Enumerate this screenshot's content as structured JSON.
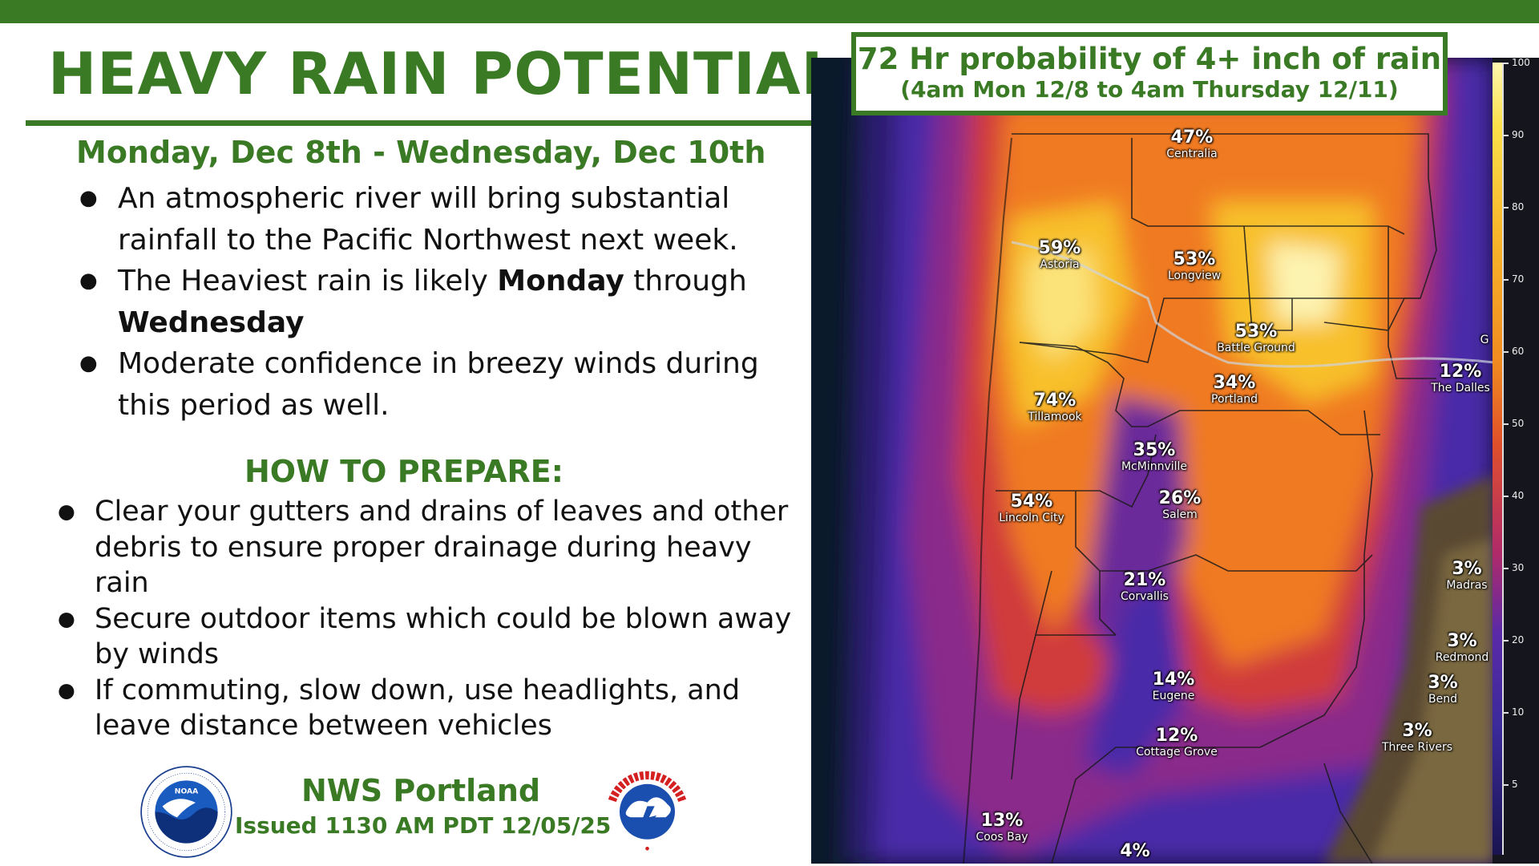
{
  "header": {
    "title": "HEAVY RAIN POTENTIAL",
    "date_range": "Monday, Dec 8th - Wednesday, Dec 10th"
  },
  "bullets": [
    {
      "text": "An atmospheric river will bring substantial rainfall to the Pacific Northwest next week."
    },
    {
      "pre": "The Heaviest rain is likely ",
      "bold1": "Monday",
      "mid": " through ",
      "bold2": "Wednesday"
    },
    {
      "text": "Moderate confidence in breezy winds during this period as well."
    }
  ],
  "prepare": {
    "heading": "HOW TO PREPARE:",
    "items": [
      "Clear your gutters and drains of leaves and other debris to ensure proper drainage during heavy rain",
      "Secure outdoor items which could be blown away by winds",
      "If commuting, slow down, use headlights, and leave distance between vehicles"
    ]
  },
  "footer": {
    "office": "NWS Portland",
    "issued": "Issued 1130 AM PDT 12/05/25"
  },
  "map": {
    "title_line1": "72 Hr probability of 4+ inch of rain",
    "title_line2": "(4am Mon 12/8 to 4am Thursday 12/11)",
    "colorbar_ticks": [
      "100",
      "90",
      "80",
      "70",
      "60",
      "50",
      "40",
      "30",
      "20",
      "10",
      "5"
    ],
    "cities": [
      {
        "pct": "47%",
        "name": "Centralia"
      },
      {
        "pct": "59%",
        "name": "Astoria"
      },
      {
        "pct": "53%",
        "name": "Longview"
      },
      {
        "pct": "53%",
        "name": "Battle Ground"
      },
      {
        "pct": "34%",
        "name": "Portland"
      },
      {
        "pct": "12%",
        "name": "The Dalles"
      },
      {
        "pct": "74%",
        "name": "Tillamook"
      },
      {
        "pct": "35%",
        "name": "McMinnville"
      },
      {
        "pct": "54%",
        "name": "Lincoln City"
      },
      {
        "pct": "26%",
        "name": "Salem"
      },
      {
        "pct": "21%",
        "name": "Corvallis"
      },
      {
        "pct": "3%",
        "name": "Madras"
      },
      {
        "pct": "3%",
        "name": "Redmond"
      },
      {
        "pct": "3%",
        "name": "Bend"
      },
      {
        "pct": "14%",
        "name": "Eugene"
      },
      {
        "pct": "12%",
        "name": "Cottage Grove"
      },
      {
        "pct": "3%",
        "name": "Three Rivers"
      },
      {
        "pct": "13%",
        "name": "Coos Bay"
      },
      {
        "pct": "4%",
        "name": ""
      }
    ],
    "edge_label": "G"
  }
}
